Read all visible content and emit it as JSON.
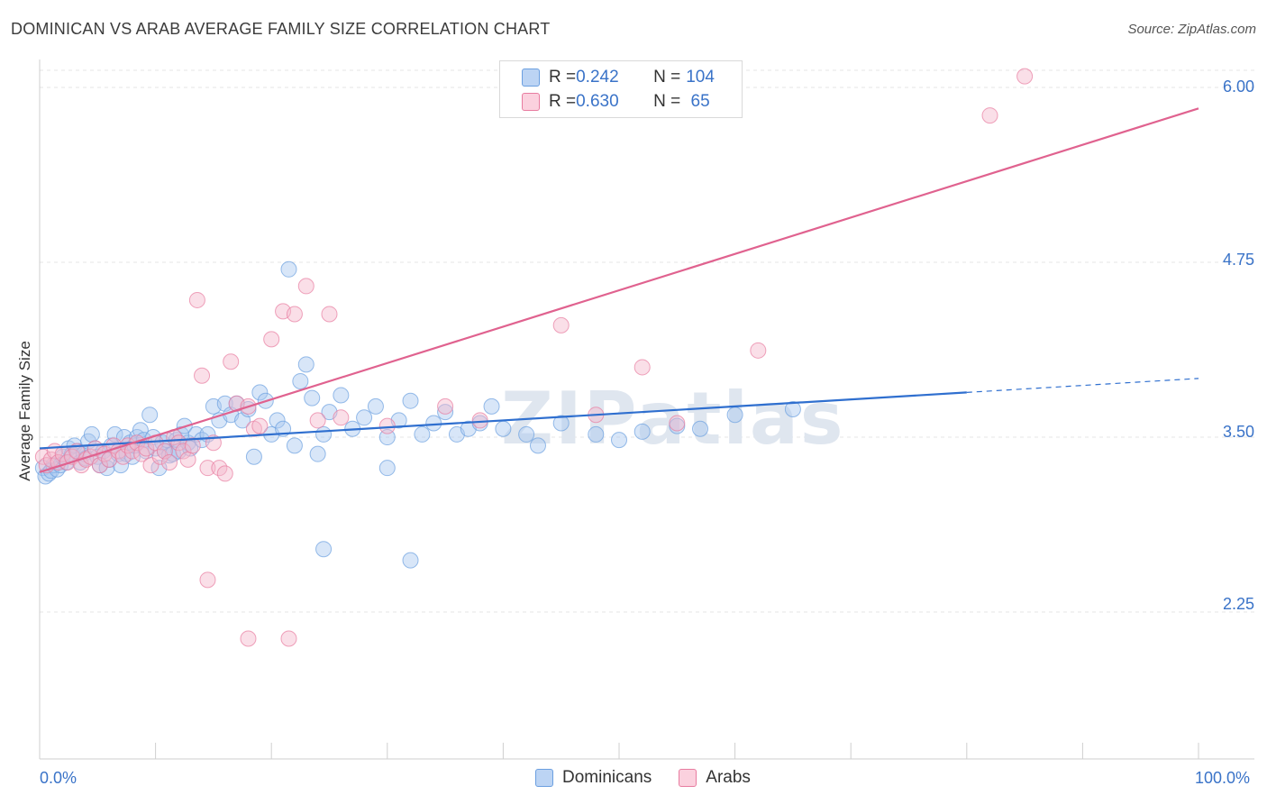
{
  "header": {
    "title": "DOMINICAN VS ARAB AVERAGE FAMILY SIZE CORRELATION CHART",
    "source": "Source: ZipAtlas.com"
  },
  "legend": {
    "rows": [
      {
        "r_label": "R = ",
        "r_value": "0.242",
        "n_label": "N = ",
        "n_value": "104",
        "color": "#a9c8f0"
      },
      {
        "r_label": "R = ",
        "r_value": "0.630",
        "n_label": "N = ",
        "n_value": " 65",
        "color": "#f5b8cb"
      }
    ]
  },
  "bottom_legend": {
    "items": [
      {
        "label": "Dominicans",
        "color": "#a9c8f0"
      },
      {
        "label": "Arabs",
        "color": "#f5b8cb"
      }
    ]
  },
  "chart_data": {
    "type": "scatter",
    "xlabel": "",
    "ylabel": "Average Family Size",
    "x_tick_labels": [
      "0.0%",
      "100.0%"
    ],
    "y_tick_labels": [
      "6.00",
      "4.75",
      "3.50",
      "2.25"
    ],
    "xlim": [
      0,
      100
    ],
    "ylim": [
      1.2,
      6.2
    ],
    "grid": true,
    "watermark": "ZIPatlas",
    "series": [
      {
        "name": "Dominicans",
        "color": "#6b9fe0",
        "fill": "#a9c8f0",
        "trend": {
          "x0": 0,
          "y0": 3.42,
          "x1": 80,
          "y1": 3.82,
          "dash_x1": 100,
          "dash_y1": 3.92
        },
        "points": [
          [
            0.3,
            3.28
          ],
          [
            0.5,
            3.22
          ],
          [
            0.8,
            3.24
          ],
          [
            1.0,
            3.26
          ],
          [
            1.2,
            3.3
          ],
          [
            1.5,
            3.27
          ],
          [
            1.8,
            3.3
          ],
          [
            2.0,
            3.36
          ],
          [
            2.3,
            3.32
          ],
          [
            2.5,
            3.42
          ],
          [
            2.8,
            3.38
          ],
          [
            3.0,
            3.44
          ],
          [
            3.3,
            3.4
          ],
          [
            3.5,
            3.32
          ],
          [
            3.8,
            3.38
          ],
          [
            4.0,
            3.35
          ],
          [
            4.2,
            3.47
          ],
          [
            4.5,
            3.52
          ],
          [
            4.8,
            3.42
          ],
          [
            5.0,
            3.36
          ],
          [
            5.2,
            3.3
          ],
          [
            5.5,
            3.4
          ],
          [
            5.8,
            3.28
          ],
          [
            6.0,
            3.34
          ],
          [
            6.2,
            3.44
          ],
          [
            6.5,
            3.52
          ],
          [
            6.8,
            3.38
          ],
          [
            7.0,
            3.3
          ],
          [
            7.3,
            3.5
          ],
          [
            7.5,
            3.38
          ],
          [
            7.8,
            3.46
          ],
          [
            8.0,
            3.36
          ],
          [
            8.2,
            3.44
          ],
          [
            8.4,
            3.5
          ],
          [
            8.7,
            3.55
          ],
          [
            9.0,
            3.48
          ],
          [
            9.2,
            3.4
          ],
          [
            9.5,
            3.66
          ],
          [
            9.8,
            3.5
          ],
          [
            10.0,
            3.42
          ],
          [
            10.3,
            3.28
          ],
          [
            10.6,
            3.46
          ],
          [
            10.8,
            3.4
          ],
          [
            11.0,
            3.48
          ],
          [
            11.2,
            3.37
          ],
          [
            11.5,
            3.38
          ],
          [
            11.8,
            3.48
          ],
          [
            12.0,
            3.4
          ],
          [
            12.2,
            3.52
          ],
          [
            12.5,
            3.58
          ],
          [
            12.8,
            3.46
          ],
          [
            13.0,
            3.42
          ],
          [
            13.5,
            3.52
          ],
          [
            14.0,
            3.48
          ],
          [
            14.5,
            3.52
          ],
          [
            15.0,
            3.72
          ],
          [
            15.5,
            3.62
          ],
          [
            16.0,
            3.74
          ],
          [
            16.5,
            3.66
          ],
          [
            17.0,
            3.74
          ],
          [
            17.5,
            3.62
          ],
          [
            18.0,
            3.7
          ],
          [
            18.5,
            3.36
          ],
          [
            19.0,
            3.82
          ],
          [
            19.5,
            3.76
          ],
          [
            20.0,
            3.52
          ],
          [
            20.5,
            3.62
          ],
          [
            21.0,
            3.56
          ],
          [
            21.5,
            4.7
          ],
          [
            22.0,
            3.44
          ],
          [
            22.5,
            3.9
          ],
          [
            23.0,
            4.02
          ],
          [
            23.5,
            3.78
          ],
          [
            24.0,
            3.38
          ],
          [
            24.5,
            3.52
          ],
          [
            25.0,
            3.68
          ],
          [
            26.0,
            3.8
          ],
          [
            27.0,
            3.56
          ],
          [
            28.0,
            3.64
          ],
          [
            29.0,
            3.72
          ],
          [
            30.0,
            3.5
          ],
          [
            31.0,
            3.62
          ],
          [
            32.0,
            3.76
          ],
          [
            33.0,
            3.52
          ],
          [
            34.0,
            3.6
          ],
          [
            35.0,
            3.68
          ],
          [
            36.0,
            3.52
          ],
          [
            37.0,
            3.56
          ],
          [
            38.0,
            3.6
          ],
          [
            39.0,
            3.72
          ],
          [
            40.0,
            3.56
          ],
          [
            42.0,
            3.52
          ],
          [
            43.0,
            3.44
          ],
          [
            45.0,
            3.6
          ],
          [
            48.0,
            3.52
          ],
          [
            50.0,
            3.48
          ],
          [
            52.0,
            3.54
          ],
          [
            55.0,
            3.58
          ],
          [
            57.0,
            3.56
          ],
          [
            60.0,
            3.66
          ],
          [
            65.0,
            3.7
          ],
          [
            24.5,
            2.7
          ],
          [
            32.0,
            2.62
          ],
          [
            30.0,
            3.28
          ]
        ]
      },
      {
        "name": "Arabs",
        "color": "#e87ca0",
        "fill": "#f5b8cb",
        "trend": {
          "x0": 0,
          "y0": 3.25,
          "x1": 100,
          "y1": 5.85
        },
        "points": [
          [
            0.3,
            3.36
          ],
          [
            0.6,
            3.3
          ],
          [
            1.0,
            3.34
          ],
          [
            1.3,
            3.4
          ],
          [
            1.6,
            3.32
          ],
          [
            2.0,
            3.38
          ],
          [
            2.4,
            3.32
          ],
          [
            2.8,
            3.36
          ],
          [
            3.2,
            3.4
          ],
          [
            3.6,
            3.3
          ],
          [
            4.0,
            3.34
          ],
          [
            4.4,
            3.36
          ],
          [
            4.8,
            3.42
          ],
          [
            5.2,
            3.3
          ],
          [
            5.6,
            3.38
          ],
          [
            6.0,
            3.34
          ],
          [
            6.4,
            3.44
          ],
          [
            6.8,
            3.4
          ],
          [
            7.2,
            3.36
          ],
          [
            7.6,
            3.44
          ],
          [
            8.0,
            3.4
          ],
          [
            8.4,
            3.46
          ],
          [
            8.8,
            3.38
          ],
          [
            9.2,
            3.42
          ],
          [
            9.6,
            3.3
          ],
          [
            10.0,
            3.46
          ],
          [
            10.4,
            3.36
          ],
          [
            10.8,
            3.4
          ],
          [
            11.2,
            3.32
          ],
          [
            11.6,
            3.5
          ],
          [
            12.0,
            3.46
          ],
          [
            12.4,
            3.4
          ],
          [
            12.8,
            3.34
          ],
          [
            13.2,
            3.44
          ],
          [
            13.6,
            4.48
          ],
          [
            14.0,
            3.94
          ],
          [
            14.5,
            3.28
          ],
          [
            15.0,
            3.46
          ],
          [
            15.5,
            3.28
          ],
          [
            16.0,
            3.24
          ],
          [
            16.5,
            4.04
          ],
          [
            17.0,
            3.74
          ],
          [
            18.0,
            3.72
          ],
          [
            18.5,
            3.56
          ],
          [
            19.0,
            3.58
          ],
          [
            20.0,
            4.2
          ],
          [
            21.0,
            4.4
          ],
          [
            22.0,
            4.38
          ],
          [
            23.0,
            4.58
          ],
          [
            24.0,
            3.62
          ],
          [
            25.0,
            4.38
          ],
          [
            26.0,
            3.64
          ],
          [
            30.0,
            3.58
          ],
          [
            35.0,
            3.72
          ],
          [
            38.0,
            3.62
          ],
          [
            45.0,
            4.3
          ],
          [
            48.0,
            3.66
          ],
          [
            52.0,
            4.0
          ],
          [
            55.0,
            3.6
          ],
          [
            62.0,
            4.12
          ],
          [
            82.0,
            5.8
          ],
          [
            85.0,
            6.08
          ],
          [
            14.5,
            2.48
          ],
          [
            18.0,
            2.06
          ],
          [
            21.5,
            2.06
          ]
        ]
      }
    ]
  }
}
